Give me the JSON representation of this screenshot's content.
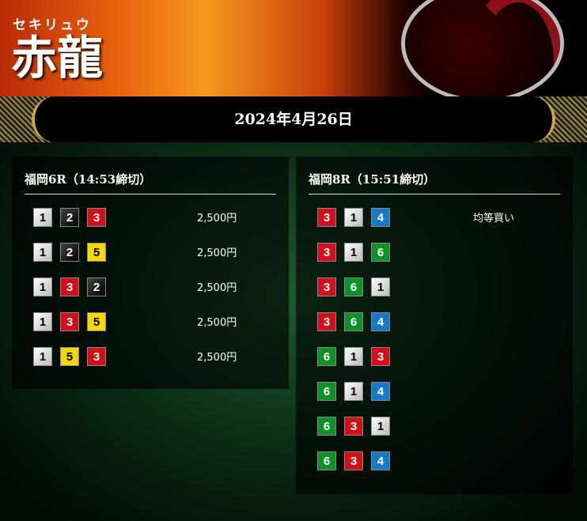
{
  "header": {
    "kana": "セキリュウ",
    "logo": "赤龍",
    "date": "2024年4月26日"
  },
  "boat_colors": {
    "1": "#ffffff",
    "2": "#000000",
    "3": "#d0101a",
    "4": "#1878c8",
    "5": "#f5d800",
    "6": "#109028"
  },
  "races": [
    {
      "title": "福岡6R（14:53締切）",
      "rows": [
        {
          "boats": [
            "1",
            "2",
            "3"
          ],
          "amount": "2,500円"
        },
        {
          "boats": [
            "1",
            "2",
            "5"
          ],
          "amount": "2,500円"
        },
        {
          "boats": [
            "1",
            "3",
            "2"
          ],
          "amount": "2,500円"
        },
        {
          "boats": [
            "1",
            "3",
            "5"
          ],
          "amount": "2,500円"
        },
        {
          "boats": [
            "1",
            "5",
            "3"
          ],
          "amount": "2,500円"
        }
      ]
    },
    {
      "title": "福岡8R（15:51締切）",
      "rows": [
        {
          "boats": [
            "3",
            "1",
            "4"
          ],
          "amount": "均等買い"
        },
        {
          "boats": [
            "3",
            "1",
            "6"
          ],
          "amount": ""
        },
        {
          "boats": [
            "3",
            "6",
            "1"
          ],
          "amount": ""
        },
        {
          "boats": [
            "3",
            "6",
            "4"
          ],
          "amount": ""
        },
        {
          "boats": [
            "6",
            "1",
            "3"
          ],
          "amount": ""
        },
        {
          "boats": [
            "6",
            "1",
            "4"
          ],
          "amount": ""
        },
        {
          "boats": [
            "6",
            "3",
            "1"
          ],
          "amount": ""
        },
        {
          "boats": [
            "6",
            "3",
            "4"
          ],
          "amount": ""
        }
      ]
    }
  ]
}
